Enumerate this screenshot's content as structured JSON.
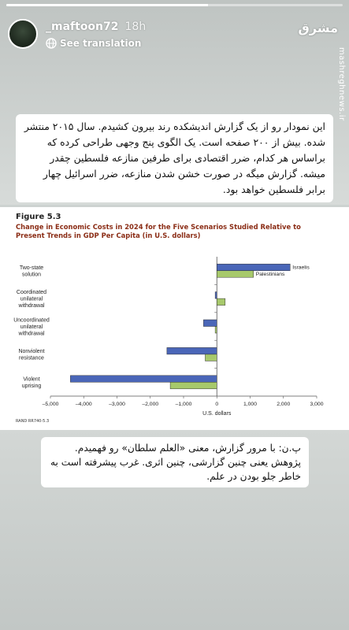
{
  "story": {
    "progress": 0.6,
    "username": "_maftoon72",
    "time": "18h",
    "translation_label": "See translation",
    "logo_text": "مشرق",
    "watermark": "mashreghnews.ir"
  },
  "caption_top": "این نمودار رو از یک گزارش اندیشکده رند بیرون کشیدم. سال ۲۰۱۵ منتشر شده. بیش از ۲۰۰ صفحه است. یک الگوی پنج وجهی طراحی کرده که براساس هر کدام، ضرر اقتصادی برای طرفین منازعه فلسطین چقدر میشه. گزارش میگه در صورت خشن شدن منازعه، ضرر اسرائیل چهار برابر فلسطین خواهد بود.",
  "caption_bottom": "پ.ن: با مرور گزارش، معنی «العلم سلطان» رو فهمیدم. پژوهش یعنی چنین گزارشی، چنین اثری. غرب پیشرفته است به خاطر جلو بودن در علم.",
  "figure": {
    "number": "Figure 5.3",
    "title": "Change in Economic Costs in 2024 for the Five Scenarios Studied Relative to Present Trends in GDP Per Capita (in U.S. dollars)",
    "source_id": "RAND RR740-5.3"
  },
  "chart_data": {
    "type": "bar",
    "orientation": "horizontal",
    "categories": [
      [
        "Two-state",
        "solution"
      ],
      [
        "Coordinated",
        "unilateral",
        "withdrawal"
      ],
      [
        "Uncoordinated",
        "unilateral",
        "withdrawal"
      ],
      [
        "Nonviolent",
        "resistance"
      ],
      [
        "Violent",
        "uprising"
      ]
    ],
    "series": [
      {
        "name": "Israelis",
        "values": [
          2200,
          -50,
          -400,
          -1500,
          -4400
        ],
        "color": "#4a66b8"
      },
      {
        "name": "Palestinians",
        "values": [
          1100,
          250,
          -50,
          -350,
          -1400
        ],
        "color": "#a7c96b"
      }
    ],
    "xlabel": "U.S. dollars",
    "xlim": [
      -5000,
      3000
    ],
    "xticks": [
      "–5,000",
      "–4,000",
      "–3,000",
      "–2,000",
      "–1,000",
      "0",
      "1,000",
      "2,000",
      "3,000"
    ],
    "legend": "labels beside bars of first category",
    "grid": false
  }
}
